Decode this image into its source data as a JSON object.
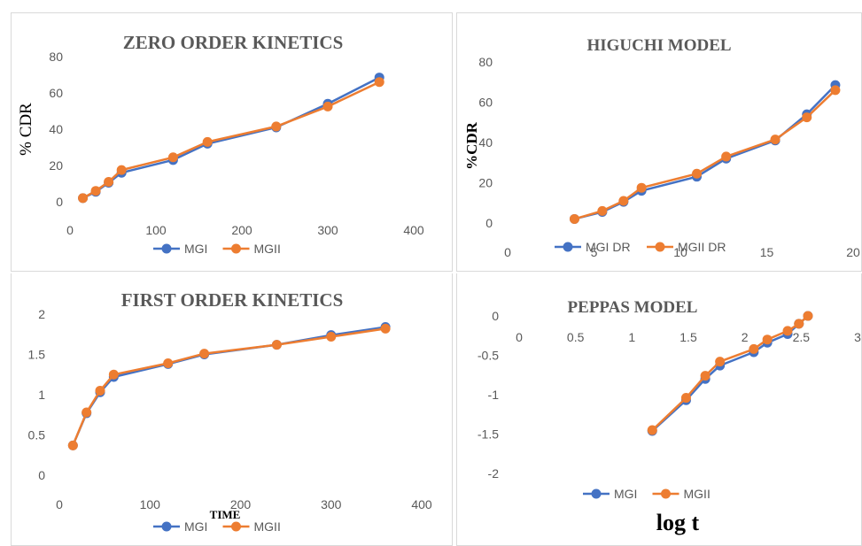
{
  "colors": {
    "series1": "#4472c4",
    "series2": "#ed7d31",
    "text": "#595959",
    "border": "#d9d9d9"
  },
  "chart_data": [
    {
      "type": "line",
      "title": "ZERO ORDER KINETICS",
      "xlabel": "",
      "ylabel": "% CDR",
      "xlim": [
        0,
        400
      ],
      "ylim": [
        0,
        80
      ],
      "xticks": [
        "0",
        "100",
        "200",
        "300",
        "400"
      ],
      "yticks": [
        "0",
        "20",
        "40",
        "60",
        "80"
      ],
      "grid": false,
      "legend": "bottom",
      "series": [
        {
          "name": "MGI",
          "x": [
            15,
            30,
            45,
            60,
            120,
            160,
            240,
            300,
            360
          ],
          "y": [
            2,
            5.5,
            10.5,
            16,
            23,
            32,
            41,
            54,
            68.5
          ]
        },
        {
          "name": "MGII",
          "x": [
            15,
            30,
            45,
            60,
            120,
            160,
            240,
            300,
            360
          ],
          "y": [
            2,
            6,
            11,
            17.5,
            24.5,
            33,
            41.5,
            52.5,
            66
          ]
        }
      ]
    },
    {
      "type": "line",
      "title": "HIGUCHI MODEL",
      "xlabel": "",
      "ylabel": "%CDR",
      "xlim": [
        0,
        20
      ],
      "ylim": [
        0,
        80
      ],
      "xticks": [
        "0",
        "5",
        "10",
        "15",
        "20"
      ],
      "yticks": [
        "0",
        "20",
        "40",
        "60",
        "80"
      ],
      "grid": false,
      "legend": "bottom",
      "series": [
        {
          "name": "MGI DR",
          "x": [
            3.87,
            5.48,
            6.71,
            7.75,
            10.95,
            12.65,
            15.49,
            17.32,
            18.97
          ],
          "y": [
            2,
            5.5,
            10.5,
            16,
            23,
            32,
            41,
            54,
            68.5
          ]
        },
        {
          "name": "MGII DR",
          "x": [
            3.87,
            5.48,
            6.71,
            7.75,
            10.95,
            12.65,
            15.49,
            17.32,
            18.97
          ],
          "y": [
            2,
            6,
            11,
            17.5,
            24.5,
            33,
            41.5,
            52.5,
            66
          ]
        }
      ]
    },
    {
      "type": "line",
      "title": "FIRST ORDER KINETICS",
      "xlabel": "TIME",
      "ylabel": "",
      "xlim": [
        0,
        400
      ],
      "ylim": [
        0,
        2
      ],
      "xticks": [
        "0",
        "100",
        "200",
        "300",
        "400"
      ],
      "yticks": [
        "0",
        "0.5",
        "1",
        "1.5",
        "2"
      ],
      "grid": false,
      "legend": "bottom",
      "series": [
        {
          "name": "MGI",
          "x": [
            15,
            30,
            45,
            60,
            120,
            160,
            240,
            300,
            360
          ],
          "y": [
            0.37,
            0.77,
            1.03,
            1.22,
            1.38,
            1.5,
            1.62,
            1.74,
            1.84
          ]
        },
        {
          "name": "MGII",
          "x": [
            15,
            30,
            45,
            60,
            120,
            160,
            240,
            300,
            360
          ],
          "y": [
            0.37,
            0.78,
            1.05,
            1.25,
            1.39,
            1.51,
            1.62,
            1.72,
            1.82
          ]
        }
      ]
    },
    {
      "type": "line",
      "title": "PEPPAS  MODEL",
      "xlabel": "log t",
      "ylabel": "",
      "xlim": [
        0,
        3
      ],
      "ylim": [
        -2,
        0
      ],
      "xticks": [
        "0",
        "0.5",
        "1",
        "1.5",
        "2",
        "2.5",
        "3"
      ],
      "yticks": [
        "-2",
        "-1.5",
        "-1",
        "-0.5",
        "0"
      ],
      "grid": false,
      "legend": "bottom",
      "series": [
        {
          "name": "MGI",
          "x": [
            1.18,
            1.48,
            1.65,
            1.78,
            2.08,
            2.2,
            2.38,
            2.48,
            2.56
          ],
          "y": [
            -1.46,
            -1.07,
            -0.8,
            -0.63,
            -0.46,
            -0.34,
            -0.23,
            -0.1,
            0
          ]
        },
        {
          "name": "MGII",
          "x": [
            1.18,
            1.48,
            1.65,
            1.78,
            2.08,
            2.2,
            2.38,
            2.48,
            2.56
          ],
          "y": [
            -1.45,
            -1.04,
            -0.76,
            -0.58,
            -0.42,
            -0.3,
            -0.19,
            -0.1,
            0
          ]
        }
      ]
    }
  ]
}
